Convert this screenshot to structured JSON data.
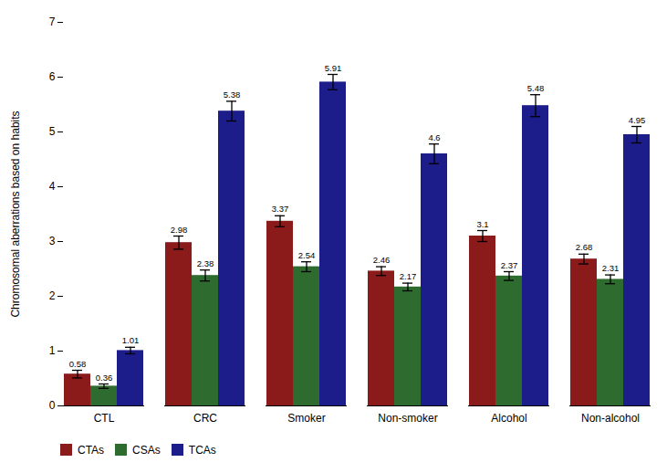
{
  "chart_data": {
    "type": "bar",
    "categories": [
      "CTL",
      "CRC",
      "Smoker",
      "Non-smoker",
      "Alcohol",
      "Non-alcohol"
    ],
    "series": [
      {
        "name": "CTAs",
        "color": "#8B1A1A",
        "values": [
          0.58,
          2.98,
          3.37,
          2.46,
          3.1,
          2.68
        ],
        "errors": [
          0.07,
          0.12,
          0.1,
          0.08,
          0.1,
          0.09
        ]
      },
      {
        "name": "CSAs",
        "color": "#2E6B2E",
        "values": [
          0.36,
          2.38,
          2.54,
          2.17,
          2.37,
          2.31
        ],
        "errors": [
          0.04,
          0.1,
          0.09,
          0.07,
          0.08,
          0.08
        ]
      },
      {
        "name": "TCAs",
        "color": "#1C1C8B",
        "values": [
          1.01,
          5.38,
          5.91,
          4.6,
          5.48,
          4.95
        ],
        "errors": [
          0.06,
          0.18,
          0.14,
          0.18,
          0.2,
          0.15
        ]
      }
    ],
    "ylabel": "Chromosomal aberrations based on habits",
    "ylim": [
      0,
      7
    ],
    "yticks": [
      0,
      1,
      2,
      3,
      4,
      5,
      6,
      7
    ],
    "data_labels": true,
    "grid": false,
    "legend": "lower left"
  }
}
